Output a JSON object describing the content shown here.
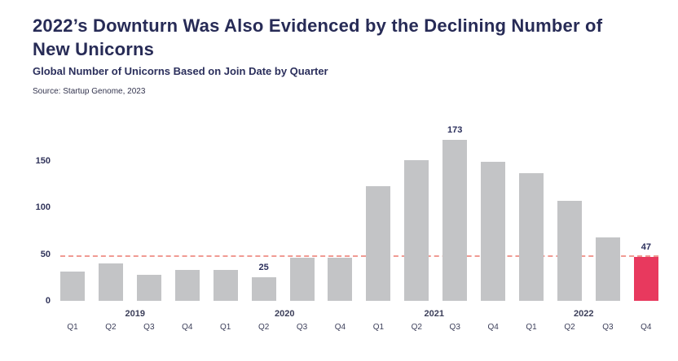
{
  "header": {
    "title": "2022’s Downturn Was Also Evidenced by the Declining Number of New Unicorns",
    "subtitle": "Global Number of Unicorns Based on Join Date by Quarter",
    "source": "Source: Startup Genome, 2023"
  },
  "colors": {
    "title": "#272b56",
    "bar": "#c3c4c6",
    "highlight": "#e8395e",
    "dashed_line": "#f09a93"
  },
  "chart_data": {
    "type": "bar",
    "title": "Global Number of Unicorns Based on Join Date by Quarter",
    "categories": [
      "Q1",
      "Q2",
      "Q3",
      "Q4",
      "Q1",
      "Q2",
      "Q3",
      "Q4",
      "Q1",
      "Q2",
      "Q3",
      "Q4",
      "Q1",
      "Q2",
      "Q3",
      "Q4"
    ],
    "year_groups": [
      {
        "label": "2019"
      },
      {
        "label": "2020"
      },
      {
        "label": "2021"
      },
      {
        "label": "2022"
      }
    ],
    "values": [
      31,
      40,
      28,
      33,
      33,
      25,
      46,
      46,
      123,
      151,
      173,
      149,
      137,
      107,
      68,
      47
    ],
    "labeled_points": [
      {
        "index": 5,
        "label": "25"
      },
      {
        "index": 10,
        "label": "173"
      },
      {
        "index": 15,
        "label": "47"
      }
    ],
    "highlight_index": 15,
    "reference_line": 47,
    "yticks": [
      0,
      50,
      100,
      150
    ],
    "ylim": [
      0,
      185
    ],
    "xlabel": "",
    "ylabel": "",
    "grid": false,
    "legend": false
  }
}
